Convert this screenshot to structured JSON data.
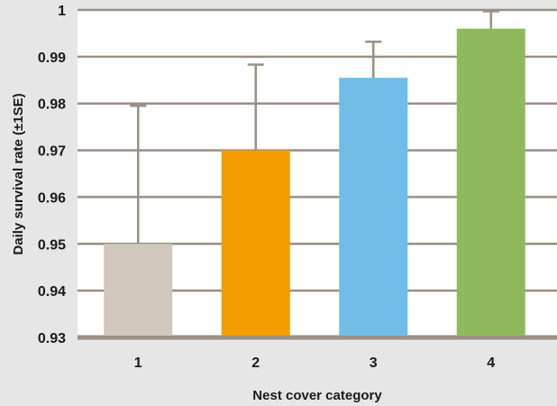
{
  "chart_data": {
    "type": "bar",
    "title": "",
    "xlabel": "Nest cover category",
    "ylabel": "Daily survival rate (±1SE)",
    "categories": [
      "1",
      "2",
      "3",
      "4"
    ],
    "values": [
      0.95,
      0.97,
      0.9855,
      0.996
    ],
    "error_upper": [
      0.9795,
      0.9883,
      0.9932,
      0.9997
    ],
    "ylim": [
      0.93,
      1.0
    ],
    "yticks": [
      0.93,
      0.94,
      0.95,
      0.96,
      0.97,
      0.98,
      0.99,
      1
    ],
    "ytick_labels": [
      "0.93",
      "0.94",
      "0.95",
      "0.96",
      "0.97",
      "0.98",
      "0.99",
      "1"
    ],
    "colors": [
      "#d1c8bd",
      "#f59c00",
      "#70bde8",
      "#8fba5c"
    ],
    "grid": true,
    "legend": "none",
    "background": "#e6e6e6",
    "plot_background": "#ffffff",
    "axis_color": "#9a8f83"
  }
}
